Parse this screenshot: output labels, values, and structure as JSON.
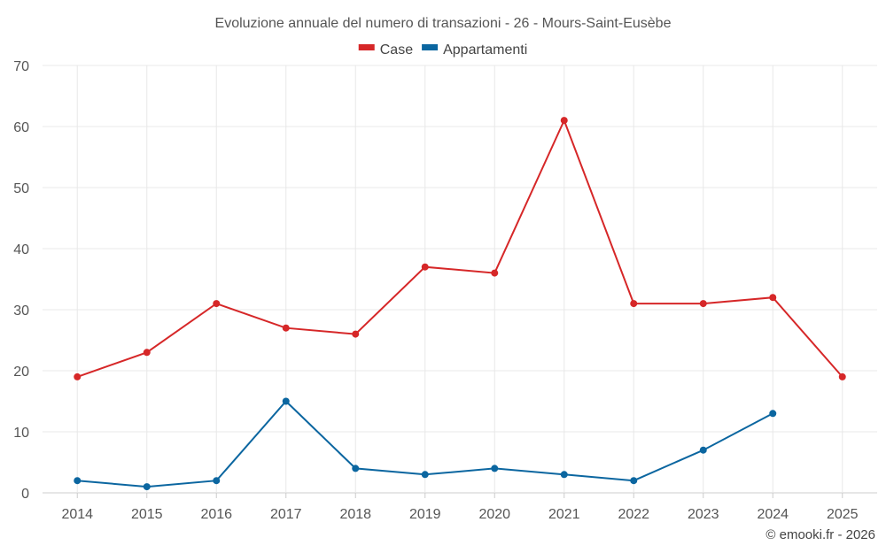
{
  "chart_data": {
    "type": "line",
    "title": "Evoluzione annuale del numero di transazioni - 26 - Mours-Saint-Eusèbe",
    "categories": [
      "2014",
      "2015",
      "2016",
      "2017",
      "2018",
      "2019",
      "2020",
      "2021",
      "2022",
      "2023",
      "2024",
      "2025"
    ],
    "series": [
      {
        "name": "Case",
        "color": "#d62728",
        "values": [
          19,
          23,
          31,
          27,
          26,
          37,
          36,
          61,
          31,
          31,
          32,
          19
        ]
      },
      {
        "name": "Appartamenti",
        "color": "#0b66a0",
        "values": [
          2,
          1,
          2,
          15,
          4,
          3,
          4,
          3,
          2,
          7,
          13,
          null
        ]
      }
    ],
    "ylim": [
      0,
      70
    ],
    "yticks": [
      0,
      10,
      20,
      30,
      40,
      50,
      60,
      70
    ],
    "grid": true,
    "legend_position": "top-center",
    "xlabel": "",
    "ylabel": ""
  },
  "credit": "© emooki.fr - 2026"
}
